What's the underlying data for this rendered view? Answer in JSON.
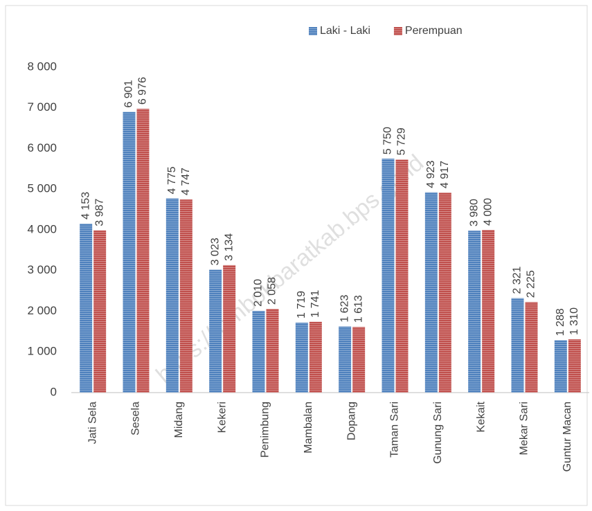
{
  "chart_data": {
    "type": "bar",
    "categories": [
      "Jati Sela",
      "Sesela",
      "Midang",
      "Kekeri",
      "Penimbung",
      "Mambalan",
      "Dopang",
      "Taman Sari",
      "Gunung Sari",
      "Kekait",
      "Mekar  Sari",
      "Guntur Macan"
    ],
    "series": [
      {
        "name": "Laki - Laki",
        "color": "#4f81bd",
        "values": [
          4153,
          6901,
          4775,
          3023,
          2010,
          1719,
          1623,
          5750,
          4923,
          3980,
          2321,
          1288
        ],
        "value_labels": [
          "4 153",
          "6 901",
          "4 775",
          "3 023",
          "2 010",
          "1 719",
          "1 623",
          "5 750",
          "4 923",
          "3 980",
          "2 321",
          "1 288"
        ]
      },
      {
        "name": "Perempuan",
        "color": "#c0504d",
        "values": [
          3987,
          6976,
          4747,
          3134,
          2058,
          1741,
          1613,
          5729,
          4917,
          4000,
          2225,
          1310
        ],
        "value_labels": [
          "3 987",
          "6 976",
          "4 747",
          "3 134",
          "2 058",
          "1 741",
          "1 613",
          "5 729",
          "4 917",
          "4 000",
          "2 225",
          "1 310"
        ]
      }
    ],
    "ylim": [
      0,
      8000
    ],
    "yticks": [
      0,
      {
        "value": 1000,
        "label": "1 000"
      },
      {
        "value": 2000,
        "label": "2 000"
      },
      {
        "value": 3000,
        "label": "3 000"
      },
      {
        "value": 4000,
        "label": "4 000"
      },
      {
        "value": 5000,
        "label": "5 000"
      },
      {
        "value": 6000,
        "label": "6 000"
      },
      {
        "value": 7000,
        "label": "7 000"
      },
      {
        "value": 8000,
        "label": "8 000"
      }
    ],
    "grid": false,
    "legend": "top",
    "annotation": "https://lombokbaratkab.bps.go.id"
  }
}
